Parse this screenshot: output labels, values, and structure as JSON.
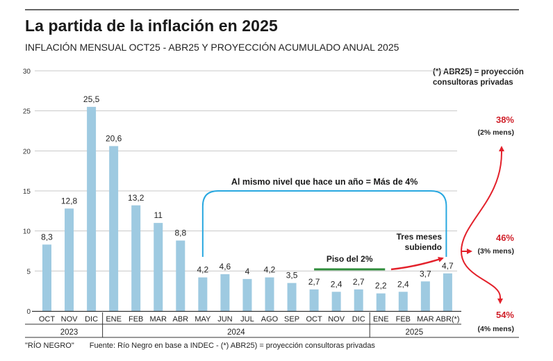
{
  "header": {
    "title": "La partida de la inflación en 2025",
    "subtitle": "INFLACIÓN MENSUAL OCT25 - ABR25 Y PROYECCIÓN ACUMULADO ANUAL 2025",
    "note_line1": "(*) ABR25) = proyección",
    "note_line2": "consultoras privadas"
  },
  "footer": {
    "credit": "\"RÍO NEGRO\"",
    "source": "Fuente: Río Negro en base a INDEC - (*) ABR25) = proyección consultoras privadas"
  },
  "colors": {
    "bar": "#9ecae1",
    "grid": "#c8c8c8",
    "bracket": "#29a8e0",
    "floor": "#2e8b3a",
    "arrow": "#e3212b",
    "projection_text": "#d0202a"
  },
  "chart_data": {
    "type": "bar",
    "title": "La partida de la inflación en 2025",
    "xlabel": "",
    "ylabel": "",
    "ylim": [
      0,
      30
    ],
    "yticks": [
      0,
      5,
      10,
      15,
      20,
      25,
      30
    ],
    "grid": true,
    "categories": [
      "OCT",
      "NOV",
      "DIC",
      "ENE",
      "FEB",
      "MAR",
      "ABR",
      "MAY",
      "JUN",
      "JUL",
      "AGO",
      "SEP",
      "OCT",
      "NOV",
      "DIC",
      "ENE",
      "FEB",
      "MAR",
      "ABR(*)"
    ],
    "values": [
      8.3,
      12.8,
      25.5,
      20.6,
      13.2,
      11,
      8.8,
      4.2,
      4.6,
      4,
      4.2,
      3.5,
      2.7,
      2.4,
      2.7,
      2.2,
      2.4,
      3.7,
      4.7
    ],
    "value_labels": [
      "8,3",
      "12,8",
      "25,5",
      "20,6",
      "13,2",
      "11",
      "8,8",
      "4,2",
      "4,6",
      "4",
      "4,2",
      "3,5",
      "2,7",
      "2,4",
      "2,7",
      "2,2",
      "2,4",
      "3,7",
      "4,7"
    ],
    "years": [
      {
        "label": "2023",
        "start": 0,
        "end": 2
      },
      {
        "label": "2024",
        "start": 3,
        "end": 14
      },
      {
        "label": "2025",
        "start": 15,
        "end": 18
      }
    ],
    "annotations": {
      "bracket_label": "Al mismo nivel que hace un año = Más de 4%",
      "bracket_from": 7,
      "bracket_to": 18,
      "floor_label": "Piso del 2%",
      "floor_from": 12,
      "floor_to": 15,
      "rising_label_line1": "Tres meses",
      "rising_label_line2": "subiendo"
    },
    "projections": [
      {
        "annual": "38%",
        "monthly": "(2% mens)"
      },
      {
        "annual": "46%",
        "monthly": "(3% mens)"
      },
      {
        "annual": "54%",
        "monthly": "(4% mens)"
      }
    ]
  }
}
